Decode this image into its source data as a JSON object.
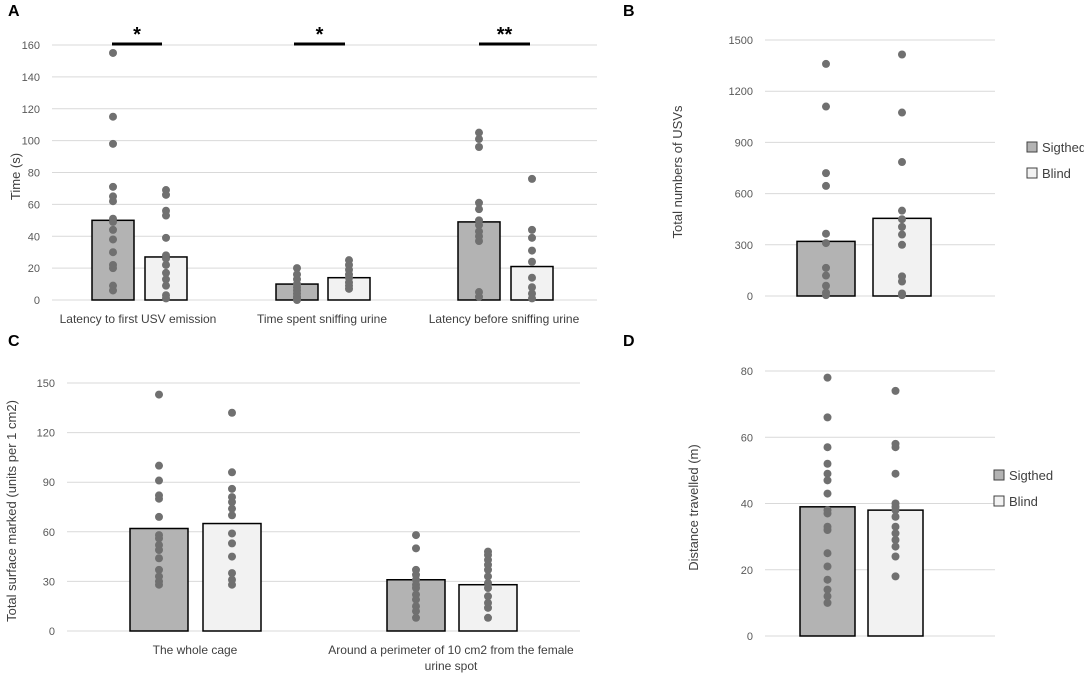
{
  "colors": {
    "sighted": "#b3b3b3",
    "blind": "#f2f2f2",
    "dot": "#707070",
    "edge": "#000000"
  },
  "legend": {
    "sighted": "Sigthed",
    "blind": "Blind"
  },
  "chart_data": [
    {
      "panel": "A",
      "type": "bar",
      "ylabel": "Time (s)",
      "ylim": [
        0,
        160
      ],
      "yticks": [
        0,
        20,
        40,
        60,
        80,
        100,
        120,
        140,
        160
      ],
      "grid": true,
      "categories": [
        "Latency to first USV emission",
        "Time spent sniffing urine",
        "Latency before sniffing urine"
      ],
      "series": [
        {
          "name": "Sigthed",
          "values": [
            50,
            10,
            49
          ]
        },
        {
          "name": "Blind",
          "values": [
            27,
            14,
            21
          ]
        }
      ],
      "points": [
        [
          [
            155,
            115,
            98,
            71,
            65,
            62,
            51,
            49,
            44,
            38,
            30,
            22,
            20,
            9,
            6
          ],
          [
            69,
            66,
            56,
            53,
            39,
            28,
            26,
            22,
            17,
            13,
            9,
            3,
            1
          ]
        ],
        [
          [
            20,
            16,
            13,
            10,
            8,
            6,
            4,
            2,
            1,
            0
          ],
          [
            25,
            22,
            19,
            16,
            14,
            11,
            9,
            7
          ]
        ],
        [
          [
            105,
            101,
            96,
            61,
            57,
            50,
            47,
            43,
            40,
            37,
            5,
            2
          ],
          [
            76,
            44,
            39,
            31,
            24,
            14,
            8,
            4,
            1
          ]
        ]
      ],
      "significance": [
        "*",
        "*",
        "**"
      ]
    },
    {
      "panel": "B",
      "type": "bar",
      "ylabel": "Total numbers of USVs",
      "ylim": [
        0,
        1500
      ],
      "yticks": [
        0,
        300,
        600,
        900,
        1200,
        1500
      ],
      "grid": true,
      "categories": [
        ""
      ],
      "series": [
        {
          "name": "Sigthed",
          "values": [
            320
          ]
        },
        {
          "name": "Blind",
          "values": [
            455
          ]
        }
      ],
      "points": [
        [
          [
            1360,
            1110,
            720,
            645,
            365,
            310,
            165,
            120,
            60,
            20,
            5
          ],
          [
            1415,
            1075,
            785,
            500,
            450,
            405,
            360,
            300,
            115,
            85,
            15,
            5
          ]
        ]
      ]
    },
    {
      "panel": "C",
      "type": "bar",
      "ylabel": "Total surface marked (units per 1 cm2)",
      "ylim": [
        0,
        150
      ],
      "yticks": [
        0,
        30,
        60,
        90,
        120,
        150
      ],
      "grid": true,
      "categories": [
        "The whole cage",
        "Around a perimeter of 10 cm2 from the female urine spot"
      ],
      "series": [
        {
          "name": "Sigthed",
          "values": [
            62,
            31
          ]
        },
        {
          "name": "Blind",
          "values": [
            65,
            28
          ]
        }
      ],
      "points": [
        [
          [
            143,
            100,
            91,
            82,
            80,
            69,
            58,
            56,
            52,
            49,
            44,
            37,
            33,
            30,
            28
          ],
          [
            132,
            96,
            86,
            81,
            78,
            74,
            70,
            59,
            53,
            45,
            35,
            31,
            28
          ]
        ],
        [
          [
            58,
            50,
            37,
            34,
            31,
            28,
            26,
            22,
            19,
            15,
            12,
            8
          ],
          [
            48,
            46,
            43,
            40,
            37,
            33,
            29,
            26,
            21,
            17,
            14,
            8
          ]
        ]
      ]
    },
    {
      "panel": "D",
      "type": "bar",
      "ylabel": "Distance travelled (m)",
      "ylim": [
        0,
        80
      ],
      "yticks": [
        0,
        20,
        40,
        60,
        80
      ],
      "grid": true,
      "categories": [
        ""
      ],
      "series": [
        {
          "name": "Sigthed",
          "values": [
            39
          ]
        },
        {
          "name": "Blind",
          "values": [
            38
          ]
        }
      ],
      "points": [
        [
          [
            78,
            66,
            57,
            52,
            49,
            47,
            43,
            38,
            37,
            33,
            32,
            25,
            21,
            17,
            14,
            12,
            10
          ],
          [
            74,
            58,
            57,
            49,
            40,
            39,
            38,
            36,
            33,
            31,
            29,
            27,
            24,
            18
          ]
        ]
      ]
    }
  ]
}
